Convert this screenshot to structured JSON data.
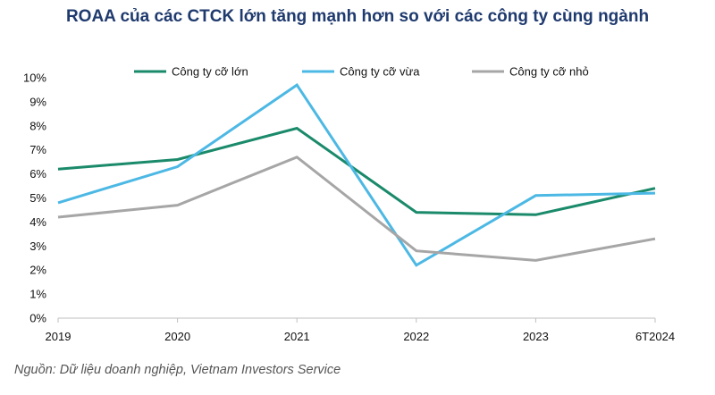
{
  "chart_data": {
    "type": "line",
    "title": "ROAA của các CTCK lớn tăng mạnh hơn so với các công ty cùng ngành",
    "xlabel": "",
    "ylabel": "",
    "categories": [
      "2019",
      "2020",
      "2021",
      "2022",
      "2023",
      "6T2024"
    ],
    "ylim": [
      0,
      10
    ],
    "yticks": [
      0,
      1,
      2,
      3,
      4,
      5,
      6,
      7,
      8,
      9,
      10
    ],
    "ytick_labels": [
      "0%",
      "1%",
      "2%",
      "3%",
      "4%",
      "5%",
      "6%",
      "7%",
      "8%",
      "9%",
      "10%"
    ],
    "grid": false,
    "legend_position": "top",
    "series": [
      {
        "name": "Công ty cỡ lớn",
        "color": "#1a8a6a",
        "values": [
          6.2,
          6.6,
          7.9,
          4.4,
          4.3,
          5.4
        ]
      },
      {
        "name": "Công ty cỡ vừa",
        "color": "#4cb8e4",
        "values": [
          4.8,
          6.3,
          9.7,
          2.2,
          5.1,
          5.2
        ]
      },
      {
        "name": "Công ty cỡ nhỏ",
        "color": "#a6a6a6",
        "values": [
          4.2,
          4.7,
          6.7,
          2.8,
          2.4,
          3.3
        ]
      }
    ]
  },
  "source": "Nguồn: Dữ liệu doanh nghiệp, Vietnam Investors Service"
}
